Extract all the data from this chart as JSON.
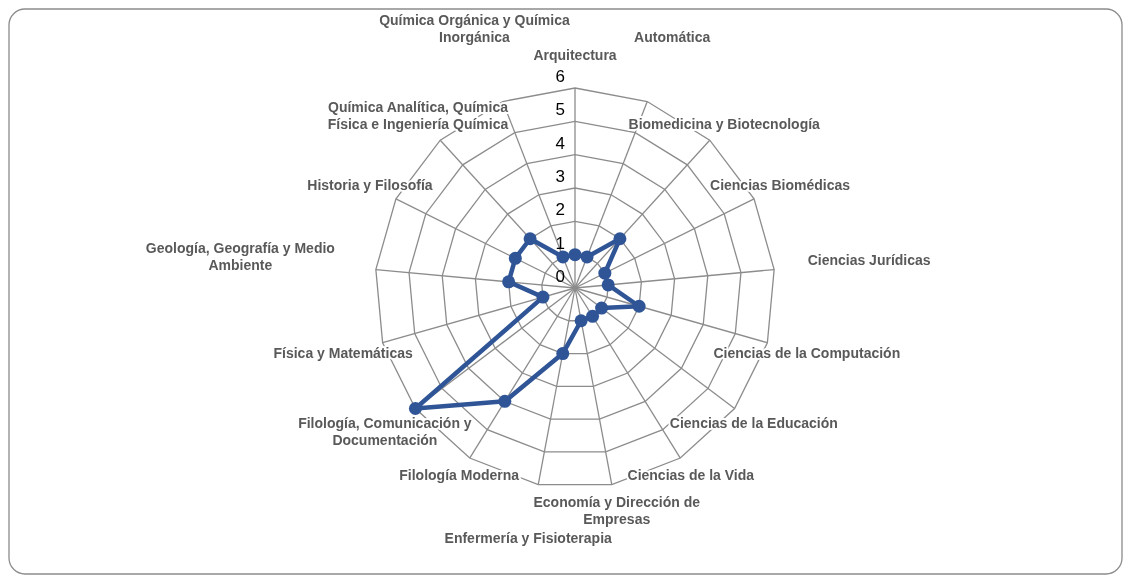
{
  "chart_data": {
    "type": "radar",
    "categories": [
      "Arquitectura",
      "Automática",
      "Biomedicina y Biotecnología",
      "Ciencias Biomédicas",
      "Ciencias Jurídicas",
      "Ciencias de la Computación",
      "Ciencias de la Educación",
      "Ciencias de la Vida",
      "Economía y Dirección de Empresas",
      "Enfermería y Fisioterapia",
      "Filología Moderna",
      "Filología, Comunicación y Documentación",
      "Física y Matemáticas",
      "Geología, Geografía y Medio Ambiente",
      "Historia y Filosofía",
      "Química Analítica, Química Física e Ingeniería Química",
      "Química Orgánica y Química Inorgánica"
    ],
    "series": [
      {
        "color": "#2f5597",
        "values": [
          1,
          1,
          2,
          1,
          1,
          2,
          1,
          1,
          1,
          2,
          4,
          6,
          1,
          2,
          2,
          2,
          1
        ]
      }
    ],
    "ylim": [
      0,
      6
    ],
    "yticks": [
      0,
      1,
      2,
      3,
      4,
      5,
      6
    ],
    "grid": true,
    "marker": "circle"
  }
}
